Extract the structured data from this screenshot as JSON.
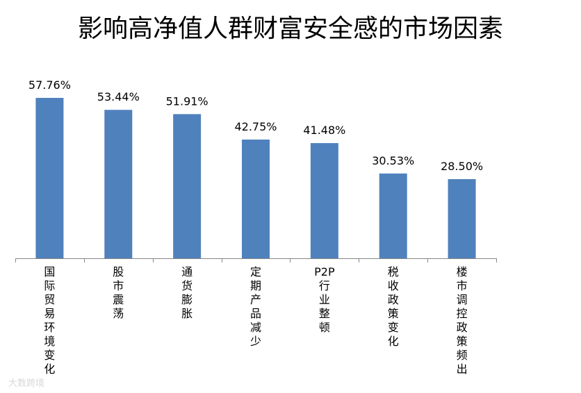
{
  "chart_data": {
    "type": "bar",
    "title": "影响高净值人群财富安全感的市场因素",
    "categories": [
      "国际贸易环境变化",
      "股市震荡",
      "通货膨胀",
      "定期产品减少",
      "P2P行业整顿",
      "税收政策变化",
      "楼市调控政策频出"
    ],
    "values": [
      57.76,
      53.44,
      51.91,
      42.75,
      41.48,
      30.53,
      28.5
    ],
    "value_labels": [
      "57.76%",
      "53.44%",
      "51.91%",
      "42.75%",
      "41.48%",
      "30.53%",
      "28.50%"
    ],
    "ylim": [
      0,
      70
    ],
    "grid": false,
    "legend": "none",
    "bar_color": "#4f81bd",
    "axis_color": "#868686"
  },
  "watermark": "大数跨境"
}
